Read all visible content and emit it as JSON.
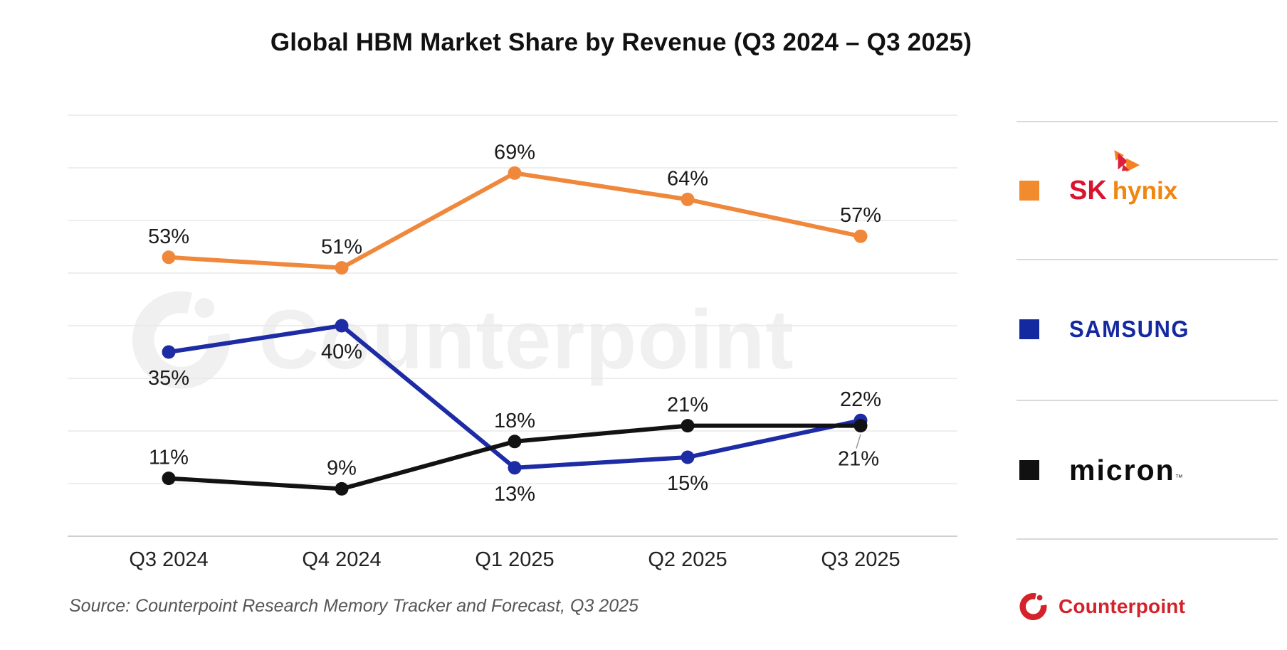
{
  "title": "Global HBM Market Share by Revenue (Q3 2024 – Q3 2025)",
  "source": "Source: Counterpoint Research Memory Tracker and Forecast, Q3 2025",
  "chart_data": {
    "type": "line",
    "categories": [
      "Q3 2024",
      "Q4 2024",
      "Q1 2025",
      "Q2 2025",
      "Q3 2025"
    ],
    "series": [
      {
        "name": "SK hynix",
        "color": "#f0883c",
        "values": [
          53,
          51,
          69,
          64,
          57
        ],
        "label_positions": [
          "above",
          "above",
          "above",
          "above",
          "above"
        ]
      },
      {
        "name": "Samsung",
        "color": "#1d2ca5",
        "values": [
          35,
          40,
          13,
          15,
          22
        ],
        "label_positions": [
          "below",
          "below",
          "below",
          "below",
          "above"
        ]
      },
      {
        "name": "Micron",
        "color": "#121212",
        "values": [
          11,
          9,
          18,
          21,
          21
        ],
        "label_positions": [
          "above",
          "above",
          "above",
          "above",
          "below-leader"
        ]
      }
    ],
    "unit": "%",
    "ylim": [
      0,
      85
    ],
    "grid_step": 10,
    "grid": true,
    "legend_position": "right",
    "data_labels": true
  },
  "legend": {
    "items": [
      {
        "name": "SK hynix",
        "marker_color": "#f28a2e",
        "logo_sk": "SK",
        "logo_hynix": "hynix"
      },
      {
        "name": "Samsung",
        "marker_color": "#1428a0",
        "wordmark": "SAMSUNG"
      },
      {
        "name": "Micron",
        "marker_color": "#111111",
        "wordmark": "micron",
        "tm": "™"
      }
    ]
  },
  "watermark": {
    "text": "Counterpoint"
  },
  "branding": {
    "name": "Counterpoint",
    "color": "#d3222a"
  }
}
